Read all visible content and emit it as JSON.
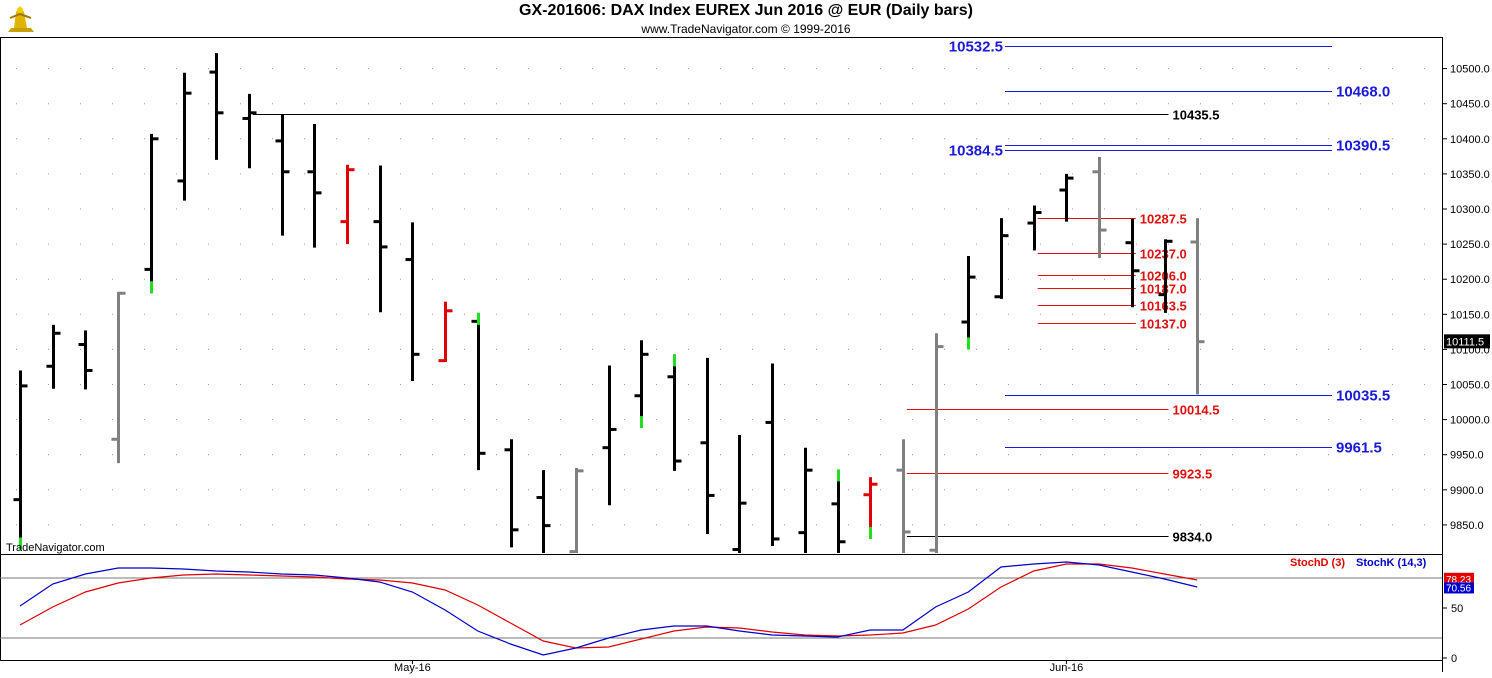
{
  "header": {
    "title": "GX-201606:  DAX Index EUREX Jun 2016 @ EUR  (Daily bars)",
    "subtitle": "www.TradeNavigator.com © 1999-2016",
    "watermark": "TradeNavigator.com"
  },
  "colors": {
    "black": "#000000",
    "gray": "#808080",
    "red": "#e00000",
    "green": "#22dd22",
    "blue": "#0000cc",
    "level_blue": "#1a1adb",
    "level_red": "#e01010"
  },
  "chart_data": [
    {
      "type": "ohlc",
      "title": "GX-201606:  DAX Index EUREX Jun 2016 @ EUR  (Daily bars)",
      "ylim": [
        9810,
        10545
      ],
      "y_ticks": [
        "10500.0",
        "10450.0",
        "10400.0",
        "10350.0",
        "10300.0",
        "10250.0",
        "10200.0",
        "10150.0",
        "10100.0",
        "10050.0",
        "10000.0",
        "9950.0",
        "9900.0",
        "9850.0"
      ],
      "y_tick_values": [
        10500,
        10450,
        10400,
        10350,
        10300,
        10250,
        10200,
        10150,
        10100,
        10050,
        10000,
        9950,
        9900,
        9850
      ],
      "x_labels": [
        {
          "label": "May-16",
          "index": 12
        },
        {
          "label": "Jun-16",
          "index": 32
        }
      ],
      "last_price": "10111.5",
      "bars": [
        {
          "o": 9886,
          "h": 10070,
          "l": 9815,
          "c": 10048,
          "color": "black",
          "mark": "green"
        },
        {
          "o": 10076,
          "h": 10135,
          "l": 10044,
          "c": 10123,
          "color": "black"
        },
        {
          "o": 10107,
          "h": 10127,
          "l": 10043,
          "c": 10070,
          "color": "black"
        },
        {
          "o": 9972,
          "h": 10182,
          "l": 9938,
          "c": 10180,
          "color": "gray"
        },
        {
          "o": 10214,
          "h": 10407,
          "l": 10180,
          "c": 10400,
          "color": "black",
          "mark": "green"
        },
        {
          "o": 10340,
          "h": 10494,
          "l": 10312,
          "c": 10465,
          "color": "black"
        },
        {
          "o": 10495,
          "h": 10522,
          "l": 10370,
          "c": 10437,
          "color": "black"
        },
        {
          "o": 10429,
          "h": 10464,
          "l": 10358,
          "c": 10437,
          "color": "black"
        },
        {
          "o": 10397,
          "h": 10435,
          "l": 10262,
          "c": 10353,
          "color": "black"
        },
        {
          "o": 10353,
          "h": 10421,
          "l": 10245,
          "c": 10323,
          "color": "black"
        },
        {
          "o": 10282,
          "h": 10363,
          "l": 10250,
          "c": 10356,
          "color": "red"
        },
        {
          "o": 10282,
          "h": 10362,
          "l": 10153,
          "c": 10246,
          "color": "black"
        },
        {
          "o": 10228,
          "h": 10281,
          "l": 10055,
          "c": 10093,
          "color": "black"
        },
        {
          "o": 10084,
          "h": 10168,
          "l": 10082,
          "c": 10155,
          "color": "red"
        },
        {
          "o": 10140,
          "h": 10152,
          "l": 9928,
          "c": 9952,
          "color": "black",
          "mark": "green"
        },
        {
          "o": 9957,
          "h": 9972,
          "l": 9818,
          "c": 9843,
          "color": "black"
        },
        {
          "o": 9889,
          "h": 9928,
          "l": 9810,
          "c": 9849,
          "color": "black"
        },
        {
          "o": 9812,
          "h": 9931,
          "l": 9810,
          "c": 9927,
          "color": "gray"
        },
        {
          "o": 9960,
          "h": 10077,
          "l": 9878,
          "c": 9986,
          "color": "black"
        },
        {
          "o": 10034,
          "h": 10113,
          "l": 9988,
          "c": 10093,
          "color": "black",
          "mark": "green"
        },
        {
          "o": 10061,
          "h": 10093,
          "l": 9927,
          "c": 9941,
          "color": "black",
          "mark": "green"
        },
        {
          "o": 9967,
          "h": 10088,
          "l": 9837,
          "c": 9892,
          "color": "black"
        },
        {
          "o": 9815,
          "h": 9978,
          "l": 9810,
          "c": 9881,
          "color": "black"
        },
        {
          "o": 9996,
          "h": 10080,
          "l": 9820,
          "c": 9830,
          "color": "black"
        },
        {
          "o": 9839,
          "h": 9960,
          "l": 9810,
          "c": 9928,
          "color": "black"
        },
        {
          "o": 9880,
          "h": 9929,
          "l": 9810,
          "c": 9826,
          "color": "black",
          "mark": "green"
        },
        {
          "o": 9893,
          "h": 9918,
          "l": 9830,
          "c": 9908,
          "color": "red",
          "mark": "green"
        },
        {
          "o": 9928,
          "h": 9972,
          "l": 9810,
          "c": 9840,
          "color": "gray"
        },
        {
          "o": 9814,
          "h": 10123,
          "l": 9810,
          "c": 10104,
          "color": "gray"
        },
        {
          "o": 10139,
          "h": 10233,
          "l": 10100,
          "c": 10203,
          "color": "black",
          "mark": "green"
        },
        {
          "o": 10175,
          "h": 10287,
          "l": 10172,
          "c": 10262,
          "color": "black"
        },
        {
          "o": 10280,
          "h": 10305,
          "l": 10241,
          "c": 10295,
          "color": "black"
        },
        {
          "o": 10327,
          "h": 10350,
          "l": 10282,
          "c": 10344,
          "color": "black"
        },
        {
          "o": 10353,
          "h": 10374,
          "l": 10230,
          "c": 10270,
          "color": "gray"
        },
        {
          "o": 10252,
          "h": 10286,
          "l": 10160,
          "c": 10212,
          "color": "black"
        },
        {
          "o": 10178,
          "h": 10257,
          "l": 10152,
          "c": 10254,
          "color": "black"
        },
        {
          "o": 10253,
          "h": 10287,
          "l": 10036,
          "c": 10111,
          "color": "gray"
        }
      ],
      "levels": [
        {
          "label": "10532.5",
          "value": 10532.5,
          "color": "blue",
          "from": 30,
          "to": 40,
          "label_pos": "left"
        },
        {
          "label": "10468.0",
          "value": 10468,
          "color": "blue",
          "from": 30,
          "to": 40,
          "label_pos": "right"
        },
        {
          "label": "10435.5",
          "value": 10435.5,
          "color": "black",
          "from": 7,
          "to": 35,
          "label_pos": "right"
        },
        {
          "label": "10390.5",
          "value": 10390.5,
          "color": "blue",
          "from": 30,
          "to": 40,
          "label_pos": "right"
        },
        {
          "label": "10384.5",
          "value": 10384.5,
          "color": "blue",
          "from": 30,
          "to": 40,
          "label_pos": "left"
        },
        {
          "label": "10287.5",
          "value": 10287.5,
          "color": "red",
          "from": 31,
          "to": 34,
          "label_pos": "right"
        },
        {
          "label": "10237.0",
          "value": 10237,
          "color": "red",
          "from": 31,
          "to": 34,
          "label_pos": "right"
        },
        {
          "label": "10206.0",
          "value": 10206,
          "color": "red",
          "from": 31,
          "to": 34,
          "label_pos": "right"
        },
        {
          "label": "10187.0",
          "value": 10187,
          "color": "red",
          "from": 31,
          "to": 34,
          "label_pos": "right"
        },
        {
          "label": "10163.5",
          "value": 10163.5,
          "color": "red",
          "from": 31,
          "to": 34,
          "label_pos": "right"
        },
        {
          "label": "10137.0",
          "value": 10137,
          "color": "red",
          "from": 31,
          "to": 34,
          "label_pos": "right"
        },
        {
          "label": "10035.5",
          "value": 10035.5,
          "color": "blue",
          "from": 30,
          "to": 40,
          "label_pos": "right"
        },
        {
          "label": "10014.5",
          "value": 10014.5,
          "color": "red",
          "from": 27,
          "to": 35,
          "label_pos": "right"
        },
        {
          "label": "9961.5",
          "value": 9961.5,
          "color": "blue",
          "from": 30,
          "to": 40,
          "label_pos": "right"
        },
        {
          "label": "9923.5",
          "value": 9923.5,
          "color": "red",
          "from": 27,
          "to": 35,
          "label_pos": "right"
        },
        {
          "label": "9834.0",
          "value": 9834,
          "color": "black",
          "from": 27,
          "to": 35,
          "label_pos": "right"
        }
      ]
    },
    {
      "type": "line",
      "title": "",
      "ylim": [
        0,
        100
      ],
      "y_ticks": [
        "50",
        "0"
      ],
      "y_tick_values": [
        50,
        0
      ],
      "hlines": [
        80,
        20
      ],
      "legend": [
        "StochD (3)",
        "StochK (14,3)"
      ],
      "last_values": [
        "78.23",
        "70.56"
      ],
      "series": [
        {
          "name": "StochD (3)",
          "color": "red",
          "values": [
            33,
            51,
            66,
            75,
            80,
            83,
            84,
            83,
            82,
            81,
            79,
            78,
            75,
            68,
            53,
            35,
            17,
            10,
            11,
            19,
            27,
            31,
            30,
            26,
            23,
            22,
            23,
            25,
            33,
            49,
            71,
            87,
            94,
            94,
            90,
            84,
            78
          ]
        },
        {
          "name": "StochK (14,3)",
          "color": "blue",
          "values": [
            52,
            74,
            84,
            90,
            90,
            89,
            87,
            86,
            84,
            83,
            80,
            76,
            66,
            48,
            27,
            14,
            3,
            10,
            20,
            28,
            32,
            32,
            27,
            23,
            22,
            21,
            28,
            28,
            51,
            66,
            91,
            94,
            96,
            93,
            86,
            79,
            71
          ]
        }
      ]
    }
  ]
}
